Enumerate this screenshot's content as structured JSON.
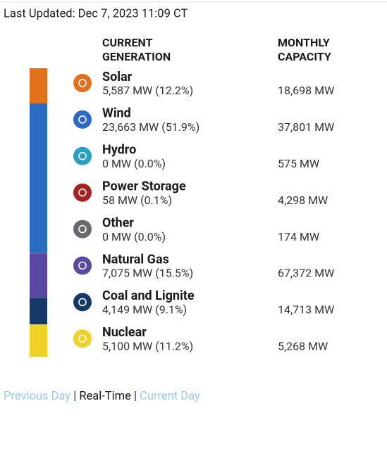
{
  "header": {
    "last_updated": "Last Updated: Dec 7, 2023 11:09 CT"
  },
  "columns": {
    "generation": [
      "CURRENT",
      "GENERATION"
    ],
    "capacity": [
      "MONTHLY",
      "CAPACITY"
    ]
  },
  "rows": [
    {
      "name": "Solar",
      "generation": "5,587 MW (12.2%)",
      "share": 12.2,
      "capacity": "18,698 MW",
      "color": "#e2711d"
    },
    {
      "name": "Wind",
      "generation": "23,663 MW (51.9%)",
      "share": 51.9,
      "capacity": "37,801 MW",
      "color": "#2b6cc2"
    },
    {
      "name": "Hydro",
      "generation": "0 MW (0.0%)",
      "share": 0.0,
      "capacity": "575 MW",
      "color": "#2a9fc4"
    },
    {
      "name": "Power Storage",
      "generation": "58 MW (0.1%)",
      "share": 0.1,
      "capacity": "4,298 MW",
      "color": "#a52224"
    },
    {
      "name": "Other",
      "generation": "0 MW (0.0%)",
      "share": 0.0,
      "capacity": "174 MW",
      "color": "#666a6e"
    },
    {
      "name": "Natural Gas",
      "generation": "7,075 MW (15.5%)",
      "share": 15.5,
      "capacity": "67,372 MW",
      "color": "#5848a0"
    },
    {
      "name": "Coal and Lignite",
      "generation": "4,149 MW (9.1%)",
      "share": 9.1,
      "capacity": "14,713 MW",
      "color": "#133a66"
    },
    {
      "name": "Nuclear",
      "generation": "5,100 MW (11.2%)",
      "share": 11.2,
      "capacity": "5,268 MW",
      "color": "#f0d126"
    }
  ],
  "footer": {
    "previous": "Previous Day",
    "separator": "|",
    "current": "Real-Time",
    "next": "Current Day"
  }
}
